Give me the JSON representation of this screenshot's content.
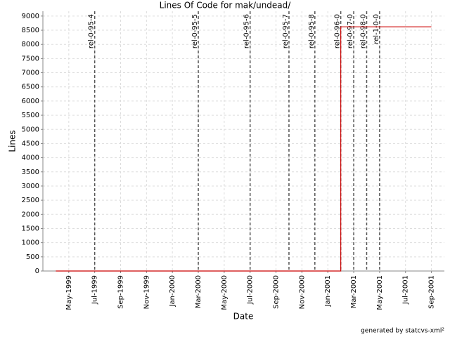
{
  "chart_data": {
    "type": "line",
    "title": "Lines Of Code for mak/undead/",
    "x_label": "Date",
    "y_label": "Lines",
    "footer": "generated by statcvs-xml²",
    "x": [
      "1999-04",
      "2001-02",
      "2001-02",
      "2001-09"
    ],
    "values": [
      0,
      0,
      8620,
      8620
    ],
    "color": "#cc0000",
    "xlim": [
      "1999-03",
      "2001-10"
    ],
    "xticks": [
      {
        "value": "1999-05",
        "label": "May-1999"
      },
      {
        "value": "1999-07",
        "label": "Jul-1999"
      },
      {
        "value": "1999-09",
        "label": "Sep-1999"
      },
      {
        "value": "1999-11",
        "label": "Nov-1999"
      },
      {
        "value": "2000-01",
        "label": "Jan-2000"
      },
      {
        "value": "2000-03",
        "label": "Mar-2000"
      },
      {
        "value": "2000-05",
        "label": "May-2000"
      },
      {
        "value": "2000-07",
        "label": "Jul-2000"
      },
      {
        "value": "2000-09",
        "label": "Sep-2000"
      },
      {
        "value": "2000-11",
        "label": "Nov-2000"
      },
      {
        "value": "2001-01",
        "label": "Jan-2001"
      },
      {
        "value": "2001-03",
        "label": "Mar-2001"
      },
      {
        "value": "2001-05",
        "label": "May-2001"
      },
      {
        "value": "2001-07",
        "label": "Jul-2001"
      },
      {
        "value": "2001-09",
        "label": "Sep-2001"
      }
    ],
    "ylim": [
      0,
      9170
    ],
    "yticks": [
      0,
      500,
      1000,
      1500,
      2000,
      2500,
      3000,
      3500,
      4000,
      4500,
      5000,
      5500,
      6000,
      6500,
      7000,
      7500,
      8000,
      8500,
      9000
    ],
    "grid": true,
    "markers": [
      {
        "label": "rel-0-95-4",
        "x": "1999-07"
      },
      {
        "label": "rel-0-95-5",
        "x": "2000-03"
      },
      {
        "label": "rel-0-95-6",
        "x": "2000-07"
      },
      {
        "label": "rel-0-95-7",
        "x": "2000-10"
      },
      {
        "label": "rel-0-95-8",
        "x": "2000-12"
      },
      {
        "label": "rel-0-96-0",
        "x": "2001-02"
      },
      {
        "label": "rel-0-97-0",
        "x": "2001-03"
      },
      {
        "label": "rel-0-98-0",
        "x": "2001-04"
      },
      {
        "label": "rel-1-0-0",
        "x": "2001-05"
      }
    ]
  }
}
